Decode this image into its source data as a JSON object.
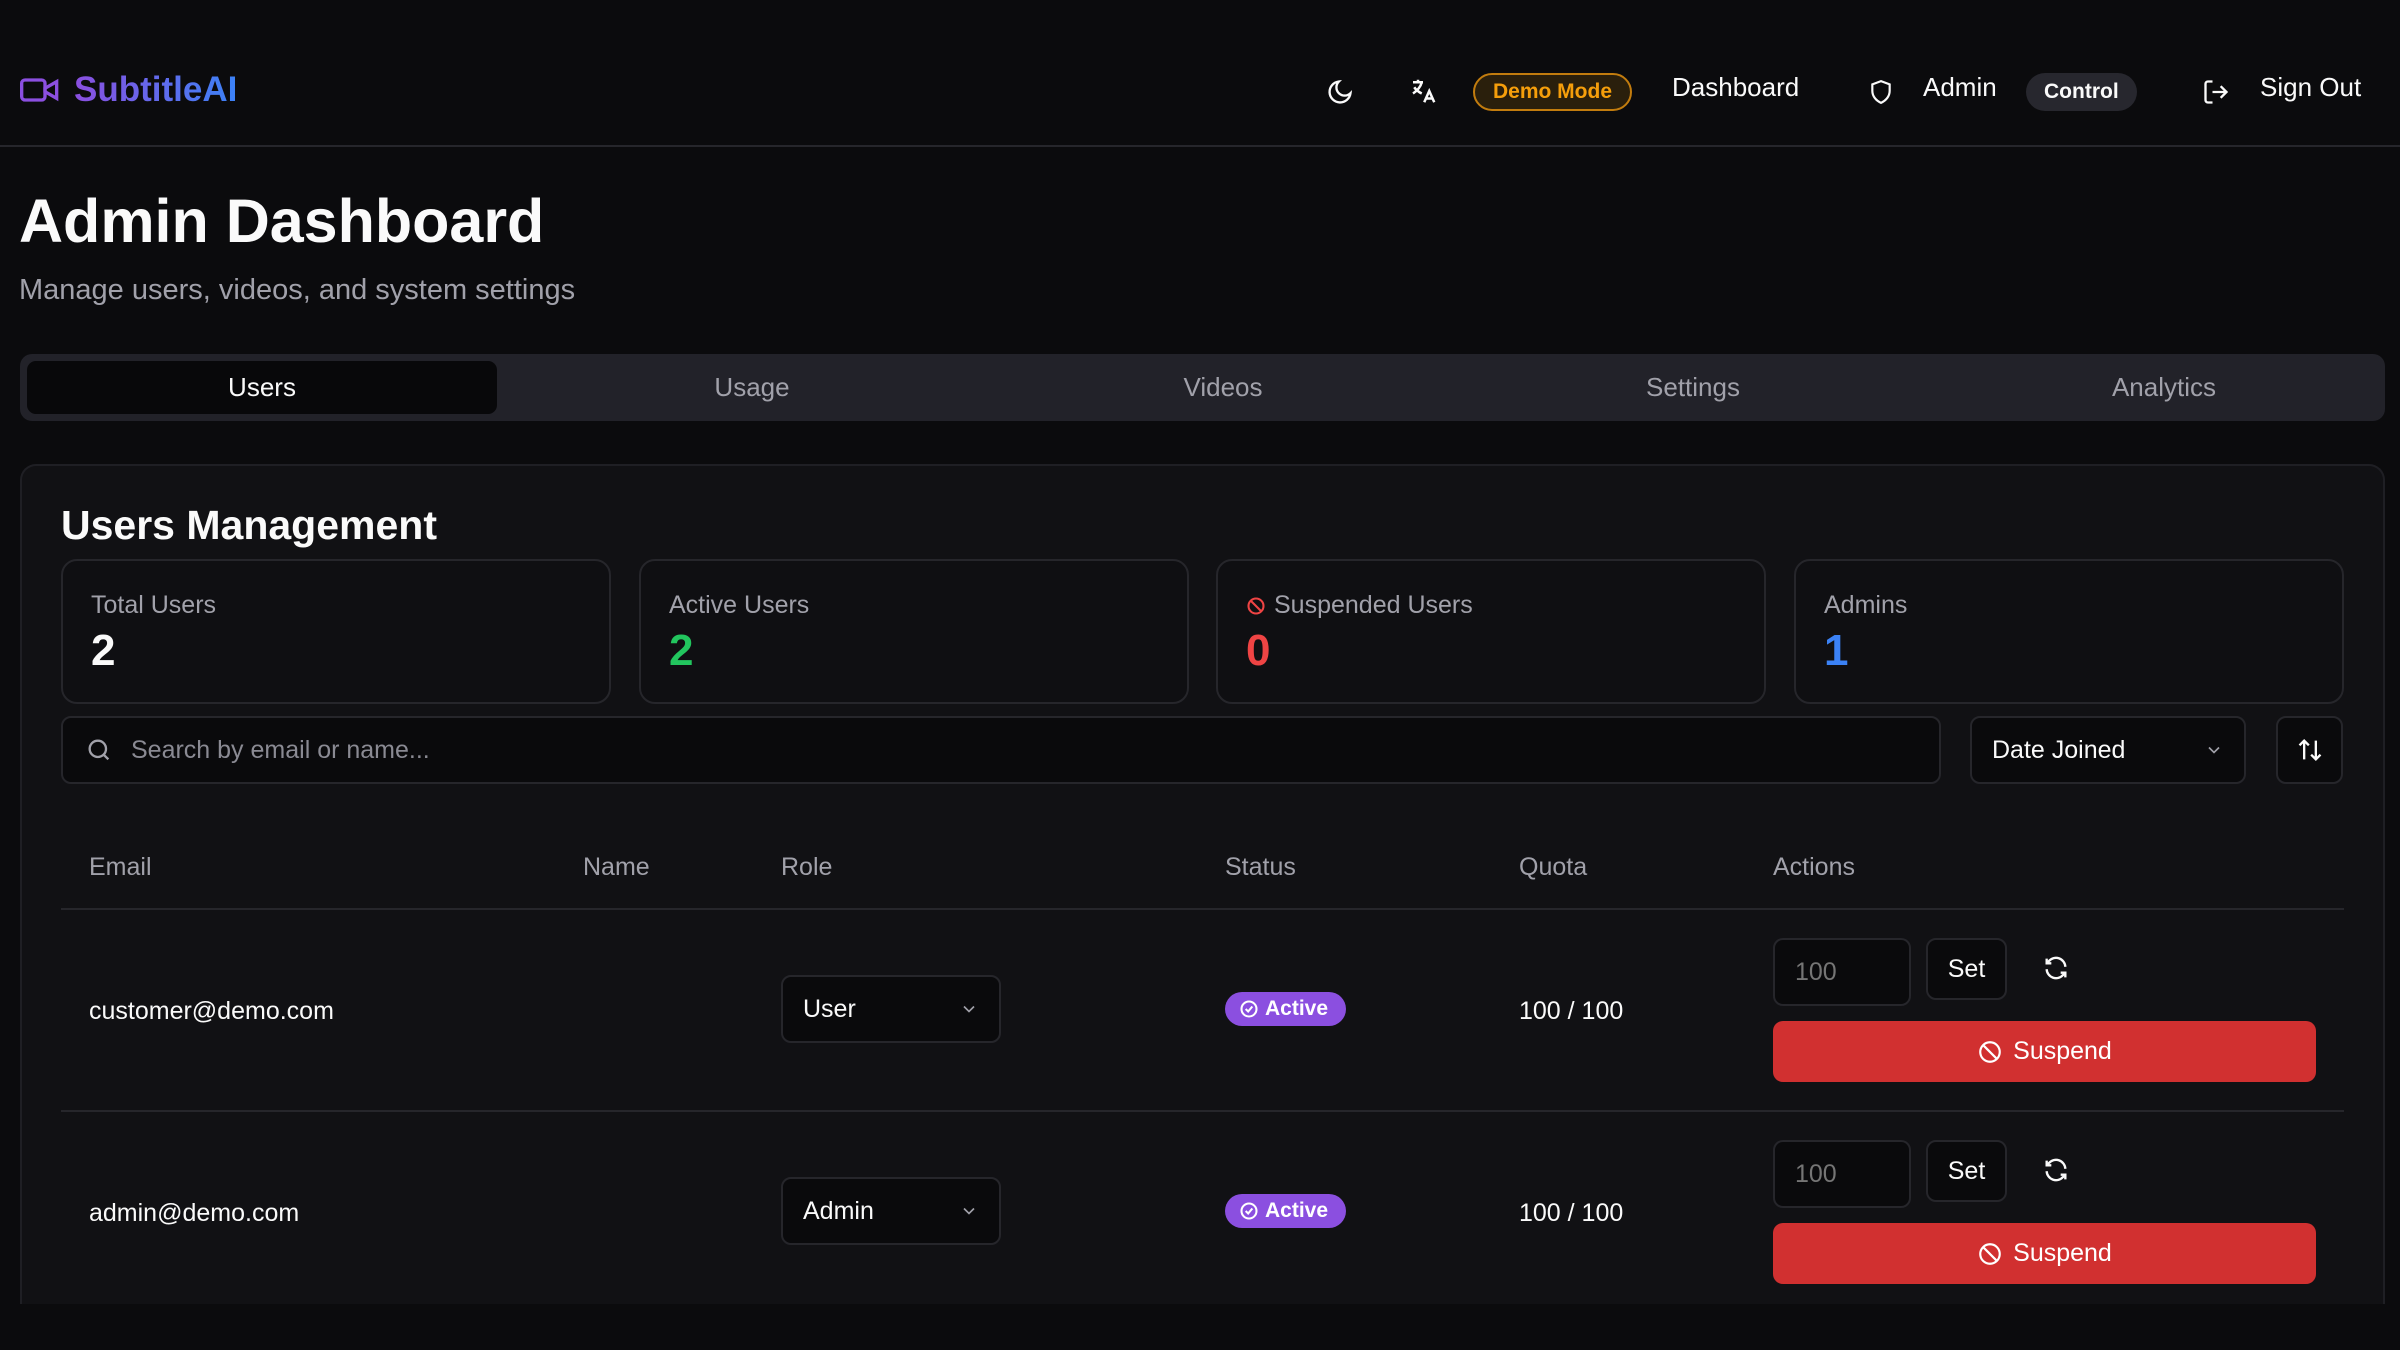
{
  "header": {
    "app_name": "SubtitleAI",
    "demo_badge": "Demo Mode",
    "dashboard": "Dashboard",
    "admin": "Admin",
    "control_badge": "Control",
    "sign_out": "Sign Out"
  },
  "page": {
    "title": "Admin Dashboard",
    "subtitle": "Manage users, videos, and system settings"
  },
  "tabs": [
    {
      "label": "Users",
      "active": true
    },
    {
      "label": "Usage"
    },
    {
      "label": "Videos"
    },
    {
      "label": "Settings"
    },
    {
      "label": "Analytics"
    }
  ],
  "section": {
    "title": "Users Management"
  },
  "stats": [
    {
      "label": "Total Users",
      "value": "2",
      "color": "#fafafa"
    },
    {
      "label": "Active Users",
      "value": "2",
      "color": "#22c55e"
    },
    {
      "label": "Suspended Users",
      "value": "0",
      "color": "#ef4444"
    },
    {
      "label": "Admins",
      "value": "1",
      "color": "#3b82f6"
    }
  ],
  "search": {
    "placeholder": "Search by email or name...",
    "value": ""
  },
  "sort": {
    "selected": "Date Joined"
  },
  "table": {
    "headers": [
      "Email",
      "Name",
      "Role",
      "Status",
      "Quota",
      "Actions"
    ],
    "rows": [
      {
        "email": "customer@demo.com",
        "name": "",
        "role": "User",
        "status": "Active",
        "quota": "100 / 100",
        "quota_input": "100",
        "set": "Set",
        "suspend": "Suspend"
      },
      {
        "email": "admin@demo.com",
        "name": "",
        "role": "Admin",
        "status": "Active",
        "quota": "100 / 100",
        "quota_input": "100",
        "set": "Set",
        "suspend": "Suspend"
      }
    ]
  },
  "colors": {
    "accent": "#6d5cf0",
    "demo": "#f59e0b",
    "danger": "#d13030",
    "badge": "#8b4fe0"
  }
}
